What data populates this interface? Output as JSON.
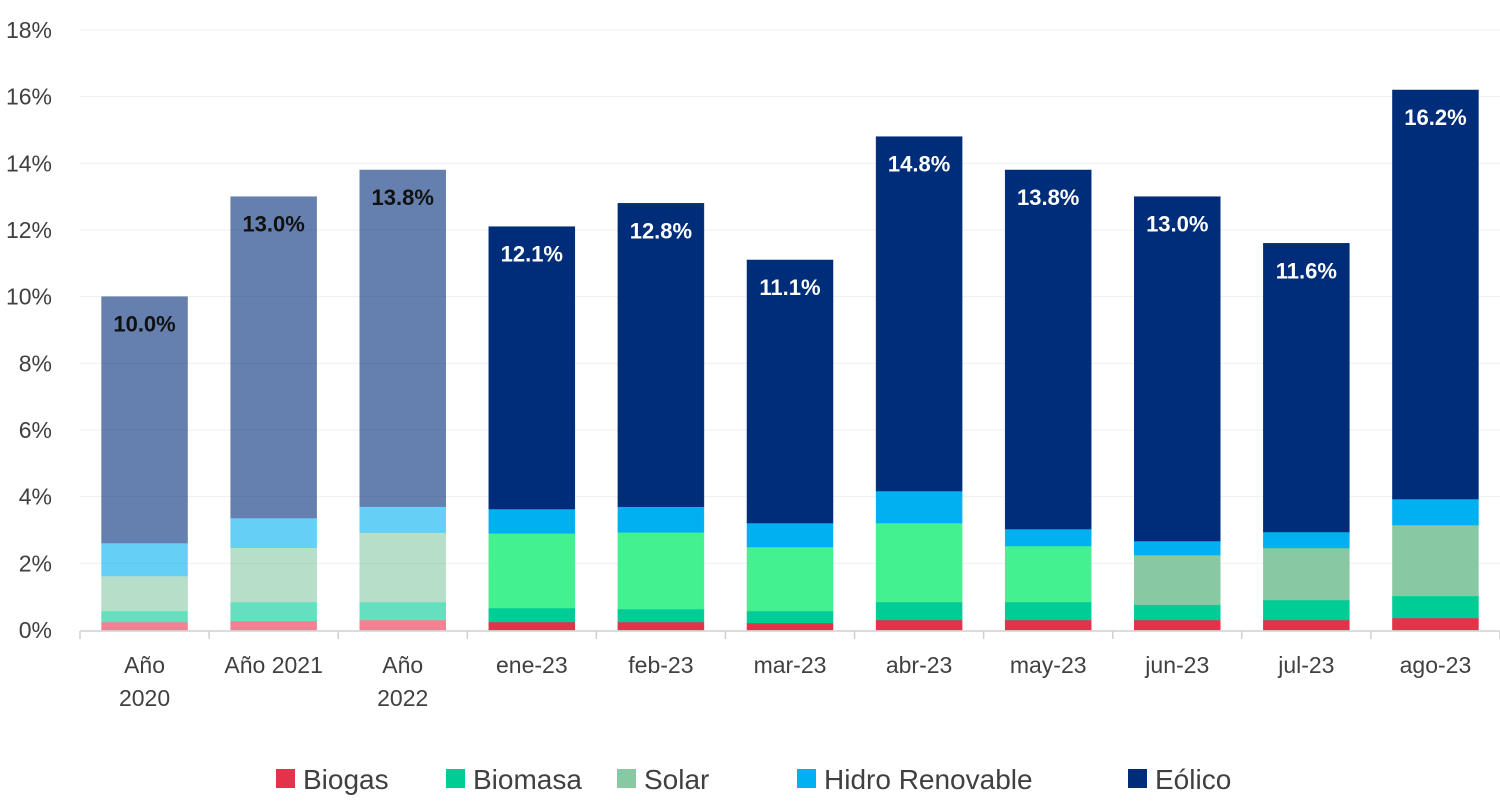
{
  "chart_data": {
    "type": "bar",
    "stacked": true,
    "title": "",
    "xlabel": "",
    "ylabel": "",
    "ylim": [
      0,
      18
    ],
    "y_ticks": [
      "0%",
      "2%",
      "4%",
      "6%",
      "8%",
      "10%",
      "12%",
      "14%",
      "16%",
      "18%"
    ],
    "y_tick_values": [
      0,
      2,
      4,
      6,
      8,
      10,
      12,
      14,
      16,
      18
    ],
    "grid": true,
    "legend_position": "bottom",
    "categories": [
      "Año 2020",
      "Año 2021",
      "Año 2022",
      "ene-23",
      "feb-23",
      "mar-23",
      "abr-23",
      "may-23",
      "jun-23",
      "jul-23",
      "ago-23"
    ],
    "category_lines": [
      [
        "Año",
        "2020"
      ],
      [
        "Año 2021"
      ],
      [
        "Año",
        "2022"
      ],
      [
        "ene-23"
      ],
      [
        "feb-23"
      ],
      [
        "mar-23"
      ],
      [
        "abr-23"
      ],
      [
        "may-23"
      ],
      [
        "jun-23"
      ],
      [
        "jul-23"
      ],
      [
        "ago-23"
      ]
    ],
    "faded_categories": [
      true,
      true,
      true,
      false,
      false,
      false,
      false,
      false,
      false,
      false,
      false
    ],
    "series": [
      {
        "name": "Biogas",
        "color": "#e3324a",
        "values": [
          0.24,
          0.27,
          0.3,
          0.24,
          0.24,
          0.21,
          0.3,
          0.3,
          0.3,
          0.3,
          0.36
        ]
      },
      {
        "name": "Biomasa",
        "color": "#00cc96",
        "values": [
          0.33,
          0.57,
          0.54,
          0.42,
          0.39,
          0.36,
          0.54,
          0.54,
          0.46,
          0.6,
          0.66
        ]
      },
      {
        "name": "Solar",
        "color": "#88c9a4",
        "alt_color": "#44f191",
        "alt_color_categories": [
          "ene-23",
          "feb-23",
          "mar-23",
          "abr-23",
          "may-23"
        ],
        "values": [
          1.05,
          1.63,
          2.08,
          2.24,
          2.3,
          1.92,
          2.37,
          1.68,
          1.49,
          1.56,
          2.13
        ]
      },
      {
        "name": "Hidro Renovable",
        "color": "#00b0f0",
        "values": [
          0.99,
          0.89,
          0.78,
          0.73,
          0.77,
          0.72,
          0.96,
          0.51,
          0.42,
          0.48,
          0.78
        ]
      },
      {
        "name": "Eólico",
        "color": "#002d79",
        "values": [
          7.39,
          9.64,
          10.1,
          8.47,
          9.1,
          7.89,
          10.63,
          10.77,
          10.33,
          8.66,
          12.27
        ]
      }
    ],
    "totals": [
      10.0,
      13.0,
      13.8,
      12.1,
      12.8,
      11.1,
      14.8,
      13.8,
      13.0,
      11.6,
      16.2
    ],
    "data_labels": [
      "10.0%",
      "13.0%",
      "13.8%",
      "12.1%",
      "12.8%",
      "11.1%",
      "14.8%",
      "13.8%",
      "13.0%",
      "11.6%",
      "16.2%"
    ]
  }
}
